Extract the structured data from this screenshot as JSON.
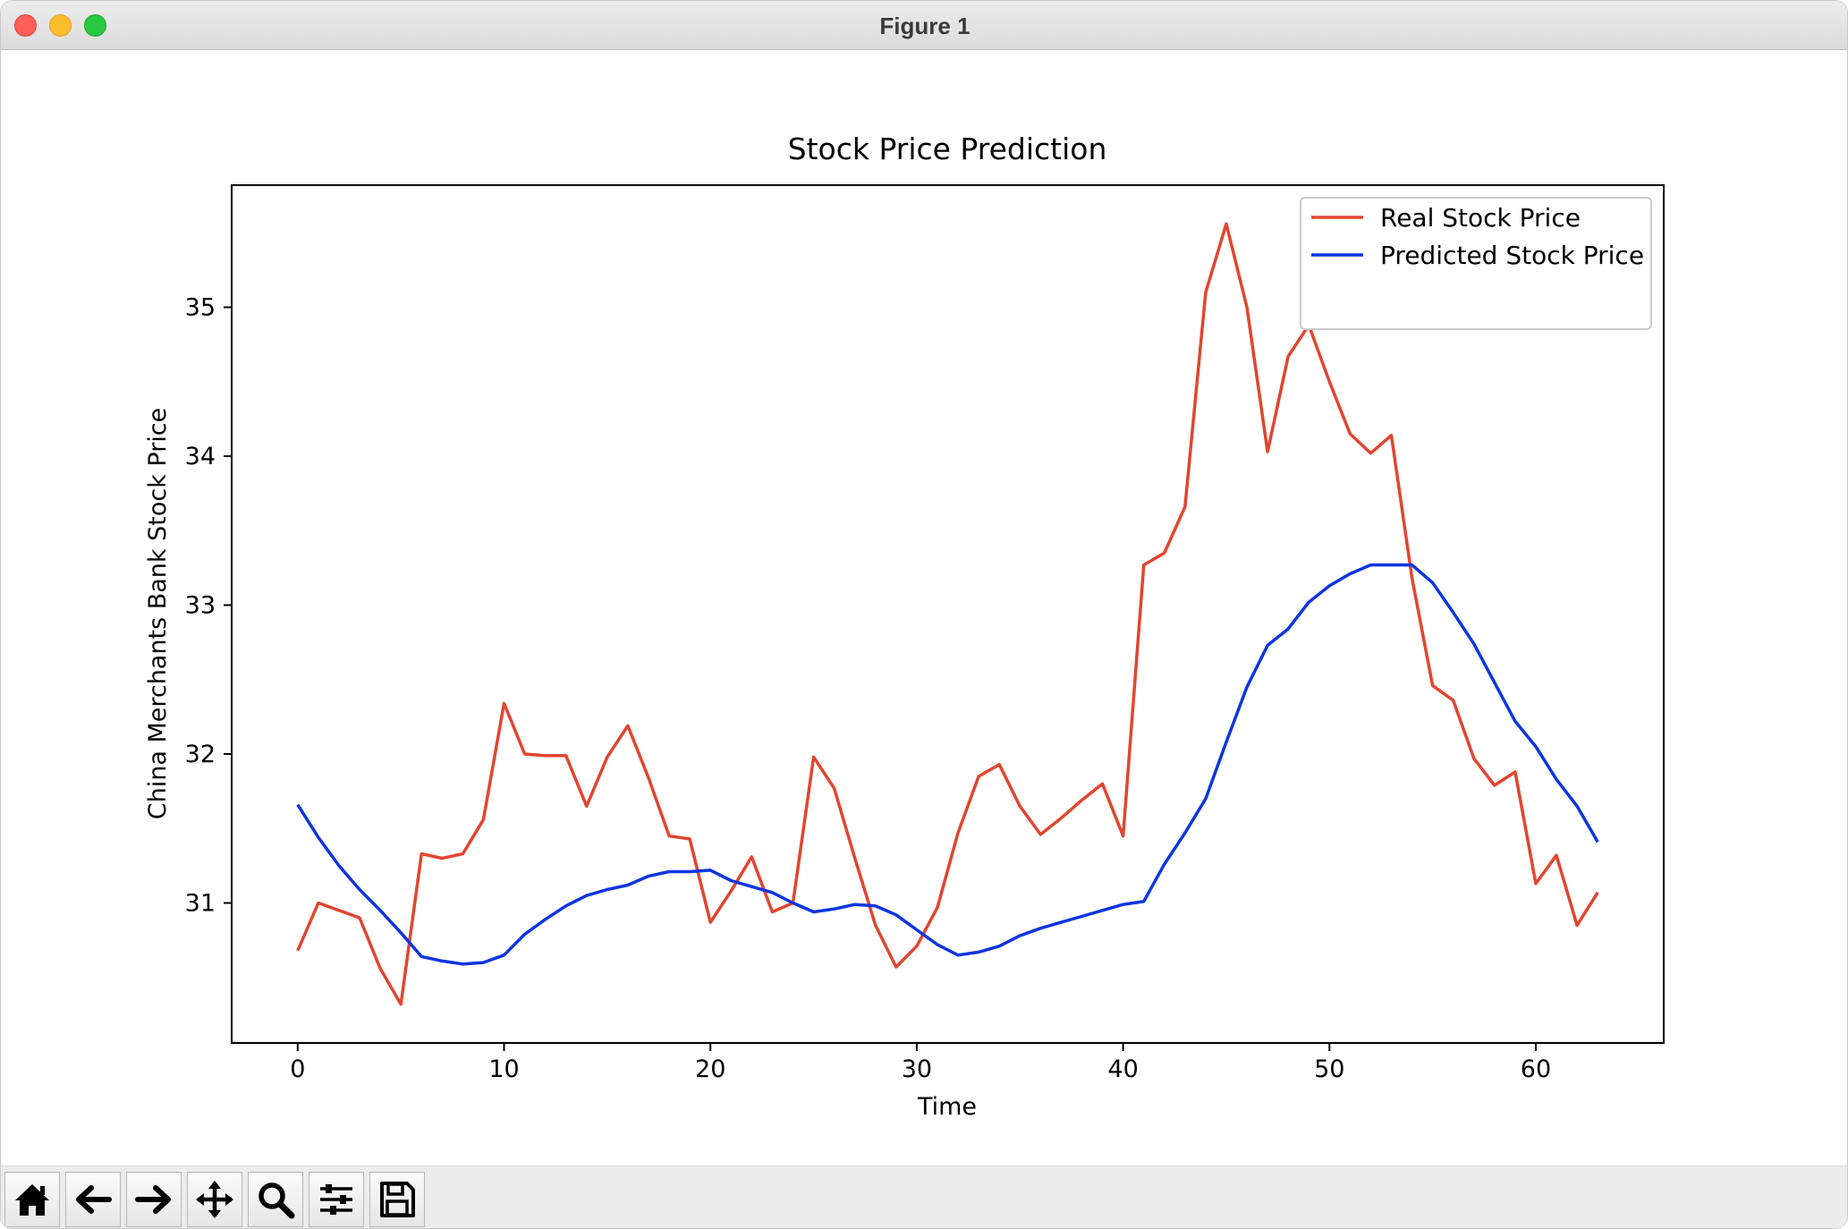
{
  "window": {
    "title": "Figure 1"
  },
  "toolbar": {
    "buttons": [
      {
        "icon": "home-icon"
      },
      {
        "icon": "back-arrow-icon"
      },
      {
        "icon": "forward-arrow-icon"
      },
      {
        "icon": "pan-move-icon"
      },
      {
        "icon": "zoom-magnifier-icon"
      },
      {
        "icon": "configure-subplots-icon"
      },
      {
        "icon": "save-floppy-icon"
      }
    ]
  },
  "chart_data": {
    "type": "line",
    "title": "Stock Price Prediction",
    "xlabel": "Time",
    "ylabel": "China Merchants Bank Stock Price",
    "xlim": [
      -3.2,
      66.2
    ],
    "ylim": [
      30.06,
      35.82
    ],
    "xticks": [
      0,
      10,
      20,
      30,
      40,
      50,
      60
    ],
    "yticks": [
      31,
      32,
      33,
      34,
      35
    ],
    "grid": false,
    "legend_position": "top-right",
    "x": [
      0,
      1,
      2,
      3,
      4,
      5,
      6,
      7,
      8,
      9,
      10,
      11,
      12,
      13,
      14,
      15,
      16,
      17,
      18,
      19,
      20,
      21,
      22,
      23,
      24,
      25,
      26,
      27,
      28,
      29,
      30,
      31,
      32,
      33,
      34,
      35,
      36,
      37,
      38,
      39,
      40,
      41,
      42,
      43,
      44,
      45,
      46,
      47,
      48,
      49,
      50,
      51,
      52,
      53,
      54,
      55,
      56,
      57,
      58,
      59,
      60,
      61,
      62,
      63
    ],
    "series": [
      {
        "name": "Real Stock Price",
        "color": "#e2452f",
        "values": [
          30.68,
          31.0,
          30.95,
          30.9,
          30.56,
          30.32,
          31.33,
          31.3,
          31.33,
          31.56,
          32.34,
          32.0,
          31.99,
          31.99,
          31.65,
          31.98,
          32.19,
          31.84,
          31.45,
          31.43,
          30.87,
          31.08,
          31.31,
          30.94,
          31.0,
          31.98,
          31.77,
          31.3,
          30.85,
          30.57,
          30.71,
          30.97,
          31.47,
          31.85,
          31.93,
          31.65,
          31.46,
          31.57,
          31.69,
          31.8,
          31.45,
          33.27,
          33.35,
          33.66,
          35.1,
          35.56,
          35.0,
          34.03,
          34.67,
          34.88,
          34.5,
          34.15,
          34.02,
          34.14,
          33.18,
          32.46,
          32.36,
          31.97,
          31.79,
          31.88,
          31.13,
          31.32,
          30.85,
          31.07
        ]
      },
      {
        "name": "Predicted Stock Price",
        "color": "#0d35e0",
        "values": [
          31.66,
          31.44,
          31.25,
          31.09,
          30.95,
          30.8,
          30.64,
          30.61,
          30.59,
          30.6,
          30.65,
          30.79,
          30.89,
          30.98,
          31.05,
          31.09,
          31.12,
          31.18,
          31.21,
          31.21,
          31.22,
          31.15,
          31.11,
          31.07,
          31.0,
          30.94,
          30.96,
          30.99,
          30.98,
          30.92,
          30.82,
          30.72,
          30.65,
          30.67,
          30.71,
          30.78,
          30.83,
          30.87,
          30.91,
          30.95,
          30.99,
          31.01,
          31.26,
          31.47,
          31.7,
          32.08,
          32.45,
          32.73,
          32.84,
          33.02,
          33.13,
          33.21,
          33.27,
          33.27,
          33.27,
          33.15,
          32.95,
          32.74,
          32.48,
          32.22,
          32.05,
          31.83,
          31.65,
          31.41
        ]
      }
    ]
  }
}
